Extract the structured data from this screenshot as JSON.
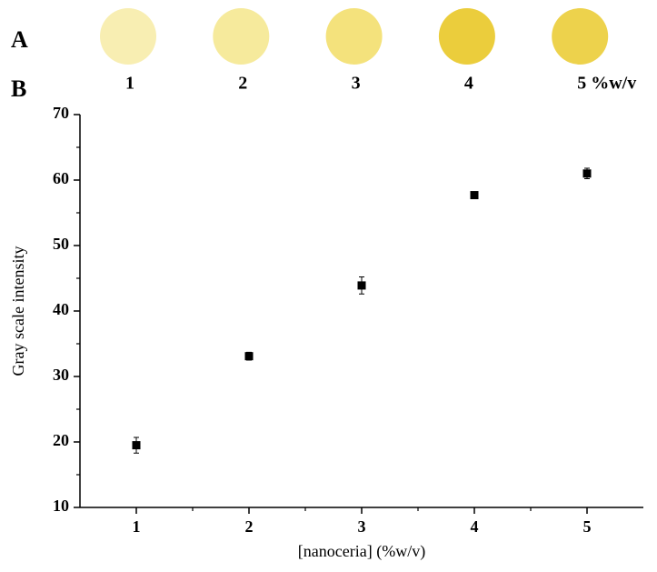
{
  "panel_a": {
    "label": "A",
    "spots": [
      {
        "label": "1",
        "color": "#f8eeb2"
      },
      {
        "label": "2",
        "color": "#f6ea9c"
      },
      {
        "label": "3",
        "color": "#f4e27c"
      },
      {
        "label": "4",
        "color": "#ebcd3c"
      },
      {
        "label": "5 %w/v",
        "color": "#edd24c"
      }
    ]
  },
  "chart_data": {
    "type": "scatter",
    "panel_label": "B",
    "x_label": "[nanoceria] (%w/v)",
    "y_label": "Gray scale intensity",
    "series": [
      {
        "x": [
          1,
          2,
          3,
          4,
          5
        ],
        "values": [
          19.5,
          33.1,
          43.9,
          57.7,
          61.0
        ],
        "errors": [
          1.2,
          0.6,
          1.3,
          0.3,
          0.8
        ],
        "color": "#000000"
      }
    ],
    "xlim": [
      0.5,
      5.5
    ],
    "xticks": [
      1,
      2,
      3,
      4,
      5
    ],
    "ylim": [
      10,
      70
    ],
    "yticks": [
      10,
      20,
      30,
      40,
      50,
      60,
      70
    ]
  }
}
